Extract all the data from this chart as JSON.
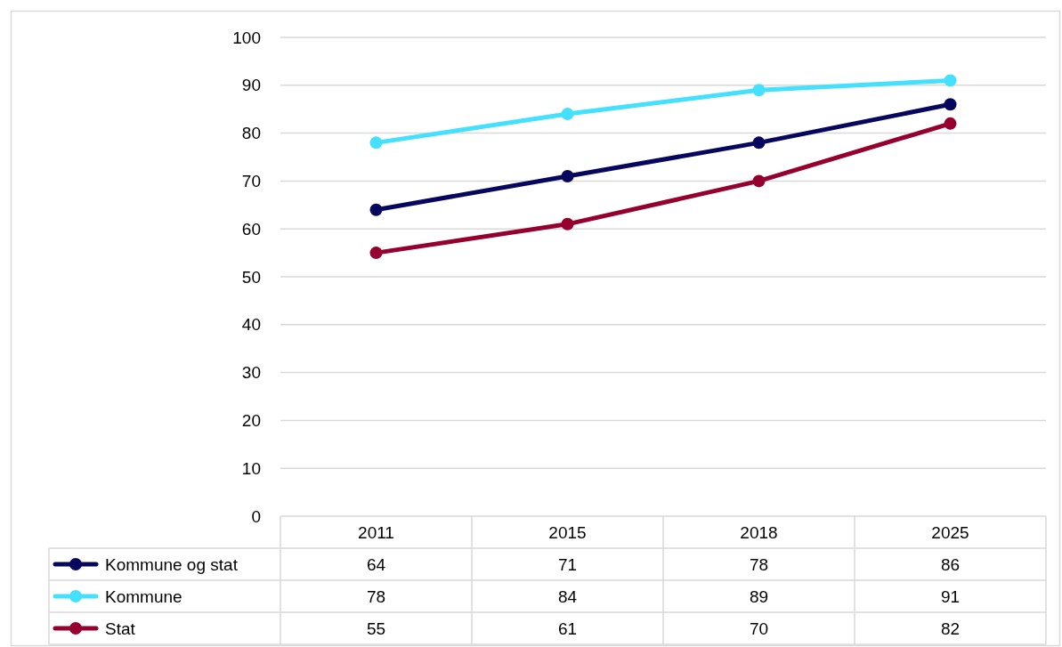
{
  "chart_data": {
    "type": "line",
    "categories": [
      "2011",
      "2015",
      "2018",
      "2025"
    ],
    "series": [
      {
        "name": "Kommune og stat",
        "color": "#06065e",
        "values": [
          64,
          71,
          78,
          86
        ]
      },
      {
        "name": "Kommune",
        "color": "#45e0fd",
        "values": [
          78,
          84,
          89,
          91
        ]
      },
      {
        "name": "Stat",
        "color": "#95002f",
        "values": [
          55,
          61,
          70,
          82
        ]
      }
    ],
    "ylim": [
      0,
      100
    ],
    "yticks": [
      0,
      10,
      20,
      30,
      40,
      50,
      60,
      70,
      80,
      90,
      100
    ],
    "grid": "y",
    "legend": "bottom",
    "data_labels": true,
    "marker": "circle",
    "line_style": "solid"
  }
}
